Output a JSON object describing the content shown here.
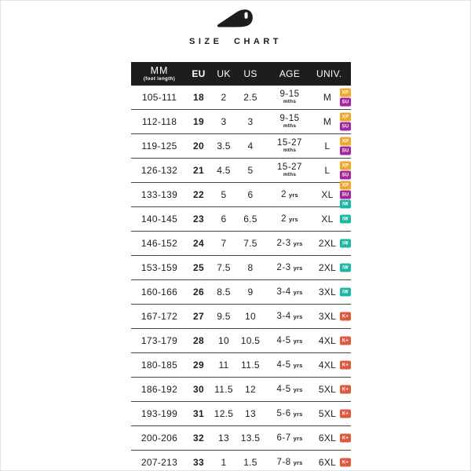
{
  "title": "SIZE CHART",
  "logo": {
    "icon": "brand-logo"
  },
  "colors": {
    "header_bg": "#1d1d1b",
    "text": "#1d1d1b",
    "row_divider": "#454545",
    "background": "#ffffff"
  },
  "table": {
    "headers": {
      "mm": "MM",
      "mm_sub": "(foot length)",
      "eu": "EU",
      "uk": "UK",
      "us": "US",
      "age": "AGE",
      "univ": "UNIV."
    },
    "badge_colors": {
      "XP": "#EFA82D",
      "SU": "#A326A0",
      "IW": "#20B6A6",
      "K+": "#E0593F"
    },
    "rows": [
      {
        "mm": "105-111",
        "eu": "18",
        "uk": "2",
        "us": "2.5",
        "age": "9-15",
        "age_unit": "mths",
        "univ": "M",
        "badges": [
          "XP",
          "SU"
        ]
      },
      {
        "mm": "112-118",
        "eu": "19",
        "uk": "3",
        "us": "3",
        "age": "9-15",
        "age_unit": "mths",
        "univ": "M",
        "badges": [
          "XP",
          "SU"
        ]
      },
      {
        "mm": "119-125",
        "eu": "20",
        "uk": "3.5",
        "us": "4",
        "age": "15-27",
        "age_unit": "mths",
        "univ": "L",
        "badges": [
          "XP",
          "SU"
        ]
      },
      {
        "mm": "126-132",
        "eu": "21",
        "uk": "4.5",
        "us": "5",
        "age": "15-27",
        "age_unit": "mths",
        "univ": "L",
        "badges": [
          "XP",
          "SU"
        ]
      },
      {
        "mm": "133-139",
        "eu": "22",
        "uk": "5",
        "us": "6",
        "age": "2",
        "age_unit": "yrs",
        "univ": "XL",
        "badges": [
          "XP",
          "SU",
          "IW"
        ]
      },
      {
        "mm": "140-145",
        "eu": "23",
        "uk": "6",
        "us": "6.5",
        "age": "2",
        "age_unit": "yrs",
        "univ": "XL",
        "badges": [
          "IW"
        ]
      },
      {
        "mm": "146-152",
        "eu": "24",
        "uk": "7",
        "us": "7.5",
        "age": "2-3",
        "age_unit": "yrs",
        "univ": "2XL",
        "badges": [
          "IW"
        ]
      },
      {
        "mm": "153-159",
        "eu": "25",
        "uk": "7.5",
        "us": "8",
        "age": "2-3",
        "age_unit": "yrs",
        "univ": "2XL",
        "badges": [
          "IW"
        ]
      },
      {
        "mm": "160-166",
        "eu": "26",
        "uk": "8.5",
        "us": "9",
        "age": "3-4",
        "age_unit": "yrs",
        "univ": "3XL",
        "badges": [
          "IW"
        ]
      },
      {
        "mm": "167-172",
        "eu": "27",
        "uk": "9.5",
        "us": "10",
        "age": "3-4",
        "age_unit": "yrs",
        "univ": "3XL",
        "badges": [
          "K+"
        ]
      },
      {
        "mm": "173-179",
        "eu": "28",
        "uk": "10",
        "us": "10.5",
        "age": "4-5",
        "age_unit": "yrs",
        "univ": "4XL",
        "badges": [
          "K+"
        ]
      },
      {
        "mm": "180-185",
        "eu": "29",
        "uk": "11",
        "us": "11.5",
        "age": "4-5",
        "age_unit": "yrs",
        "univ": "4XL",
        "badges": [
          "K+"
        ]
      },
      {
        "mm": "186-192",
        "eu": "30",
        "uk": "11.5",
        "us": "12",
        "age": "4-5",
        "age_unit": "yrs",
        "univ": "5XL",
        "badges": [
          "K+"
        ]
      },
      {
        "mm": "193-199",
        "eu": "31",
        "uk": "12.5",
        "us": "13",
        "age": "5-6",
        "age_unit": "yrs",
        "univ": "5XL",
        "badges": [
          "K+"
        ]
      },
      {
        "mm": "200-206",
        "eu": "32",
        "uk": "13",
        "us": "13.5",
        "age": "6-7",
        "age_unit": "yrs",
        "univ": "6XL",
        "badges": [
          "K+"
        ]
      },
      {
        "mm": "207-213",
        "eu": "33",
        "uk": "1",
        "us": "1.5",
        "age": "7-8",
        "age_unit": "yrs",
        "univ": "6XL",
        "badges": [
          "K+"
        ]
      }
    ]
  }
}
